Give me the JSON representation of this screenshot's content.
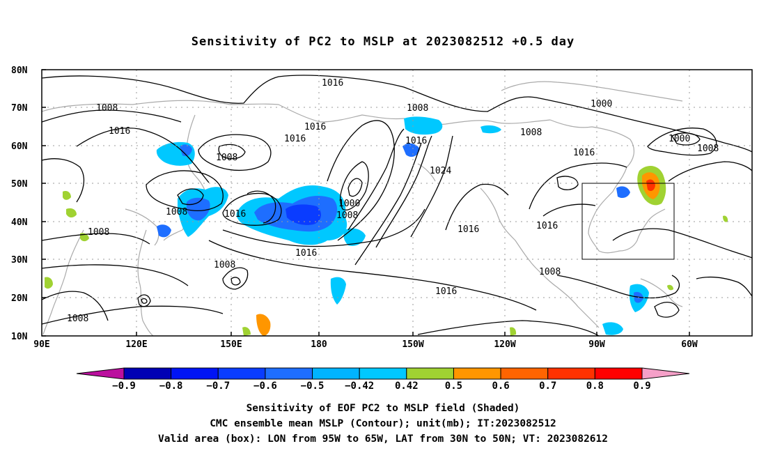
{
  "title": "Sensitivity of PC2 to MSLP at 2023082512 +0.5 day",
  "map": {
    "lat_labels": [
      "80N",
      "70N",
      "60N",
      "50N",
      "40N",
      "30N",
      "20N",
      "10N"
    ],
    "lon_labels": [
      "90E",
      "120E",
      "150E",
      "180",
      "150W",
      "120W",
      "90W",
      "60W"
    ],
    "contour_labels": [
      "1016",
      "1008",
      "1016",
      "1016",
      "1008",
      "1016",
      "1008",
      "1016",
      "1024",
      "1008",
      "1000",
      "1008",
      "1000",
      "1008",
      "1000",
      "1008",
      "1008",
      "1016",
      "1016",
      "1016",
      "1016",
      "1016",
      "1008",
      "1016",
      "1008",
      "1008"
    ],
    "colors": {
      "coast": "#aaaaaa",
      "contour": "#000000",
      "grid": "#999999",
      "box": "#000000"
    },
    "valid_box": {
      "lon_west": "95W",
      "lon_east": "65W",
      "lat_south": "30N",
      "lat_north": "50N"
    }
  },
  "colorbar": {
    "tick_labels": [
      "-0.9",
      "-0.8",
      "-0.7",
      "-0.6",
      "-0.5",
      "-0.42",
      "0.42",
      "0.5",
      "0.6",
      "0.7",
      "0.8",
      "0.9"
    ],
    "colors": [
      "#bb0f9e",
      "#0000b4",
      "#0014f5",
      "#0a3cff",
      "#1e6eff",
      "#00b4ff",
      "#00c8ff",
      "#ffffff",
      "#a0d232",
      "#ff9600",
      "#ff6400",
      "#ff3200",
      "#ff0000",
      "#f5a0c8"
    ]
  },
  "caption": {
    "line1": "Sensitivity of EOF PC2 to MSLP field (Shaded)",
    "line2": "CMC ensemble mean MSLP (Contour); unit(mb); IT:2023082512",
    "line3": "Valid area (box): LON from 95W to 65W, LAT from 30N to 50N; VT: 2023082612"
  }
}
